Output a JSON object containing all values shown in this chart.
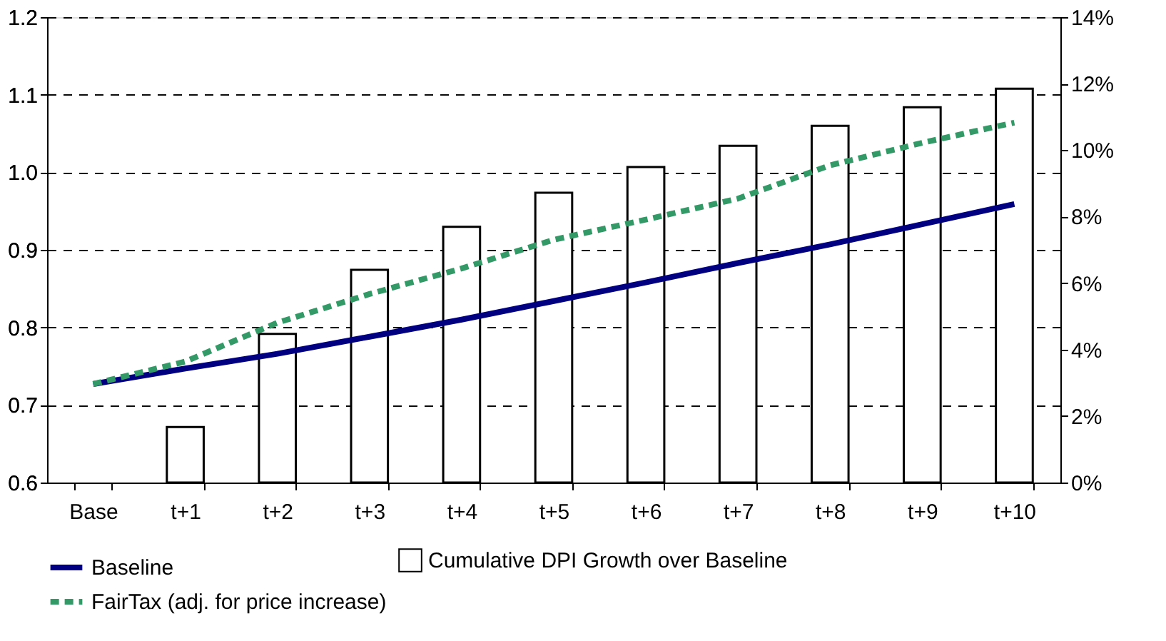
{
  "chart_data": {
    "type": "bar",
    "categories": [
      "Base",
      "t+1",
      "t+2",
      "t+3",
      "t+4",
      "t+5",
      "t+6",
      "t+7",
      "t+8",
      "t+9",
      "t+10"
    ],
    "series": [
      {
        "name": "Cumulative DPI Growth over Baseline",
        "axis": "y2",
        "color": "#ffffff",
        "values": [
          null,
          1.67,
          4.47,
          6.4,
          7.69,
          8.72,
          9.49,
          10.13,
          10.73,
          11.29,
          11.85
        ]
      },
      {
        "name": "Baseline",
        "type": "line",
        "color": "#000080",
        "line_style": "solid",
        "values": [
          0.727,
          0.747,
          0.766,
          0.788,
          0.81,
          0.834,
          0.858,
          0.883,
          0.907,
          0.933,
          0.959
        ]
      },
      {
        "name": "FairTax (adj. for price increase)",
        "type": "line",
        "color": "#339966",
        "line_style": "dashed",
        "values": [
          0.727,
          0.756,
          0.806,
          0.843,
          0.876,
          0.913,
          0.939,
          0.966,
          1.009,
          1.038,
          1.064
        ]
      }
    ],
    "ylim": [
      0.6,
      1.2
    ],
    "yticks": [
      0.6,
      0.7,
      0.8,
      0.9,
      {
        "value": 1,
        "label": "1.0"
      },
      1.1,
      1.2
    ],
    "y2lim": [
      0,
      14
    ],
    "y2ticks": [
      {
        "value": 0,
        "label": "0%"
      },
      {
        "value": 2,
        "label": "2%"
      },
      {
        "value": 4,
        "label": "4%"
      },
      {
        "value": 6,
        "label": "6%"
      },
      {
        "value": 8,
        "label": "8%"
      },
      {
        "value": 10,
        "label": "10%"
      },
      {
        "value": 12,
        "label": "12%"
      },
      {
        "value": 14,
        "label": "14%"
      }
    ],
    "grid": "y",
    "legend": "bottom"
  }
}
